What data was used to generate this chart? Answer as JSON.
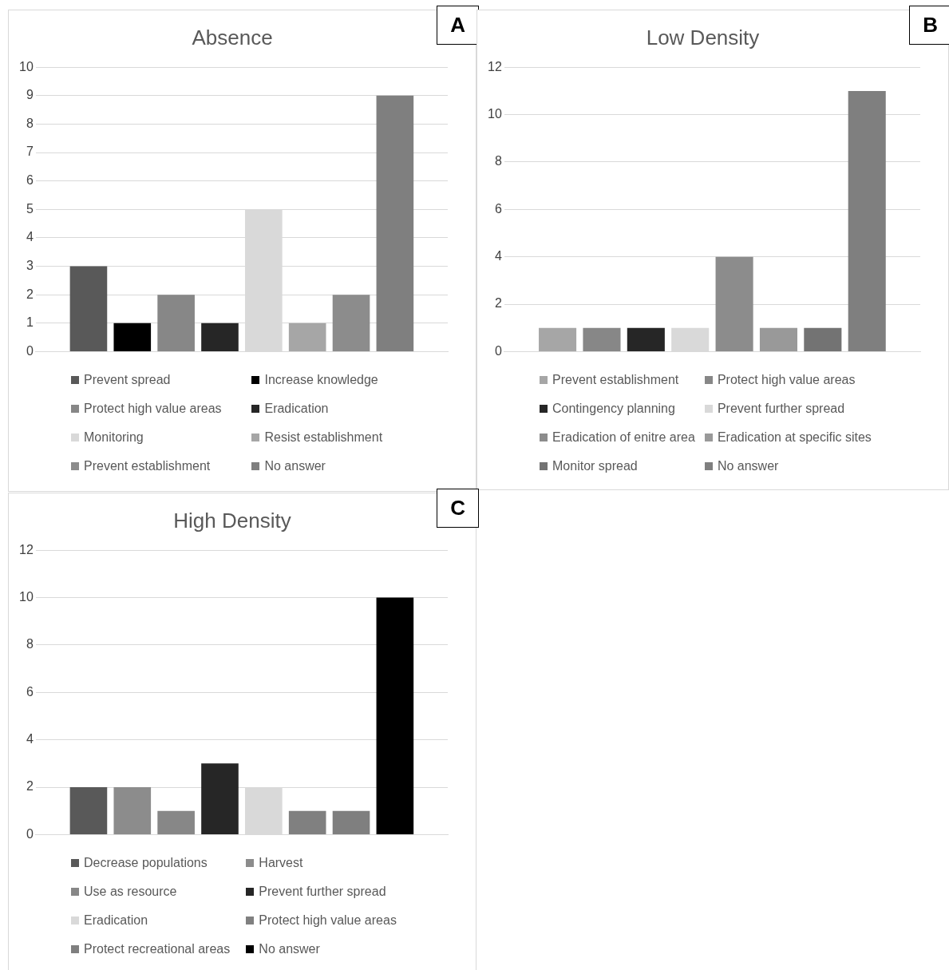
{
  "chart_data": [
    {
      "type": "bar",
      "title": "Absence",
      "annotations": [
        "A"
      ],
      "categories": [
        null
      ],
      "ylim": [
        0,
        10
      ],
      "yticks": [
        0,
        1,
        2,
        3,
        4,
        5,
        6,
        7,
        8,
        9,
        10
      ],
      "grid": "y",
      "legend": "bottom",
      "tick_labels": "y",
      "series": [
        {
          "name": "Prevent spread",
          "color": "#595959",
          "values": [
            3
          ]
        },
        {
          "name": "Increase knowledge",
          "color": "#000000",
          "values": [
            1
          ]
        },
        {
          "name": "Protect high value areas",
          "color": "#878787",
          "values": [
            2
          ]
        },
        {
          "name": "Eradication",
          "color": "#262626",
          "values": [
            1
          ]
        },
        {
          "name": "Monitoring",
          "color": "#d9d9d9",
          "values": [
            5
          ]
        },
        {
          "name": "Resist establishment",
          "color": "#a6a6a6",
          "values": [
            1
          ]
        },
        {
          "name": "Prevent establishment",
          "color": "#8c8c8c",
          "values": [
            2
          ]
        },
        {
          "name": "No answer",
          "color": "#7f7f7f",
          "values": [
            9
          ]
        }
      ]
    },
    {
      "type": "bar",
      "title": "Low Density",
      "annotations": [
        "B"
      ],
      "categories": [
        null
      ],
      "ylim": [
        0,
        12
      ],
      "yticks": [
        0,
        2,
        4,
        6,
        8,
        10,
        12
      ],
      "grid": "y",
      "legend": "bottom",
      "tick_labels": "y",
      "series": [
        {
          "name": "Prevent establishment",
          "color": "#a6a6a6",
          "values": [
            1
          ]
        },
        {
          "name": "Protect high value areas",
          "color": "#878787",
          "values": [
            1
          ]
        },
        {
          "name": "Contingency planning",
          "color": "#262626",
          "values": [
            1
          ]
        },
        {
          "name": "Prevent further spread",
          "color": "#d9d9d9",
          "values": [
            1
          ]
        },
        {
          "name": "Eradication of enitre area",
          "color": "#8c8c8c",
          "values": [
            4
          ]
        },
        {
          "name": "Eradication at specific sites",
          "color": "#999999",
          "values": [
            1
          ]
        },
        {
          "name": "Monitor spread",
          "color": "#737373",
          "values": [
            1
          ]
        },
        {
          "name": "No answer",
          "color": "#7f7f7f",
          "values": [
            11
          ]
        }
      ]
    },
    {
      "type": "bar",
      "title": "High Density",
      "annotations": [
        "C"
      ],
      "categories": [
        null
      ],
      "ylim": [
        0,
        12
      ],
      "yticks": [
        0,
        2,
        4,
        6,
        8,
        10,
        12
      ],
      "grid": "y",
      "legend": "bottom",
      "tick_labels": "y",
      "series": [
        {
          "name": "Decrease populations",
          "color": "#595959",
          "values": [
            2
          ]
        },
        {
          "name": "Harvest",
          "color": "#8c8c8c",
          "values": [
            2
          ]
        },
        {
          "name": "Use as resource",
          "color": "#878787",
          "values": [
            1
          ]
        },
        {
          "name": "Prevent further spread",
          "color": "#262626",
          "values": [
            3
          ]
        },
        {
          "name": "Eradication",
          "color": "#d9d9d9",
          "values": [
            2
          ]
        },
        {
          "name": "Protect high value areas",
          "color": "#808080",
          "values": [
            1
          ]
        },
        {
          "name": "Protect recreational areas",
          "color": "#7f7f7f",
          "values": [
            1
          ]
        },
        {
          "name": "No answer",
          "color": "#000000",
          "values": [
            10
          ]
        }
      ]
    }
  ]
}
